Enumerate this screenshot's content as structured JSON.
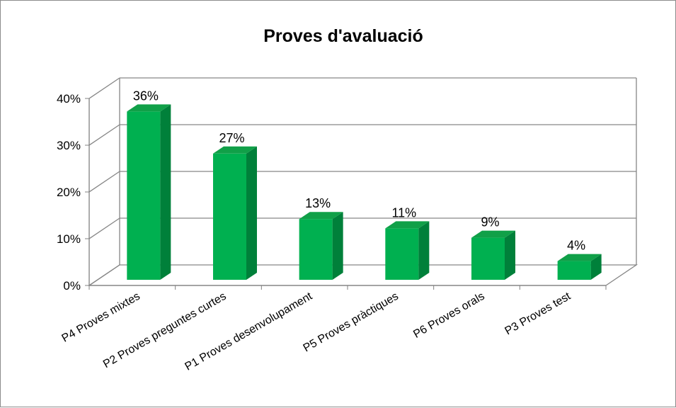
{
  "chart_data": {
    "type": "bar",
    "title": "Proves d'avaluació",
    "categories": [
      "P4 Proves mixtes",
      "P2 Proves preguntes curtes",
      "P1 Proves desenvolupament",
      "P5 Proves pràctiques",
      "P6 Proves orals",
      "P3 Proves test"
    ],
    "values": [
      36,
      27,
      13,
      11,
      9,
      4
    ],
    "value_labels": [
      "36%",
      "27%",
      "13%",
      "11%",
      "9%",
      "4%"
    ],
    "y_ticks": [
      "0%",
      "10%",
      "20%",
      "30%",
      "40%"
    ],
    "ylim": [
      0,
      40
    ],
    "grid": true,
    "legend": "none",
    "style": "3d-column",
    "colors": {
      "bar_front": "#00b050",
      "bar_side": "#00803a",
      "bar_top": "#10a048",
      "gridline": "#868686",
      "wall": "#ffffff"
    }
  }
}
